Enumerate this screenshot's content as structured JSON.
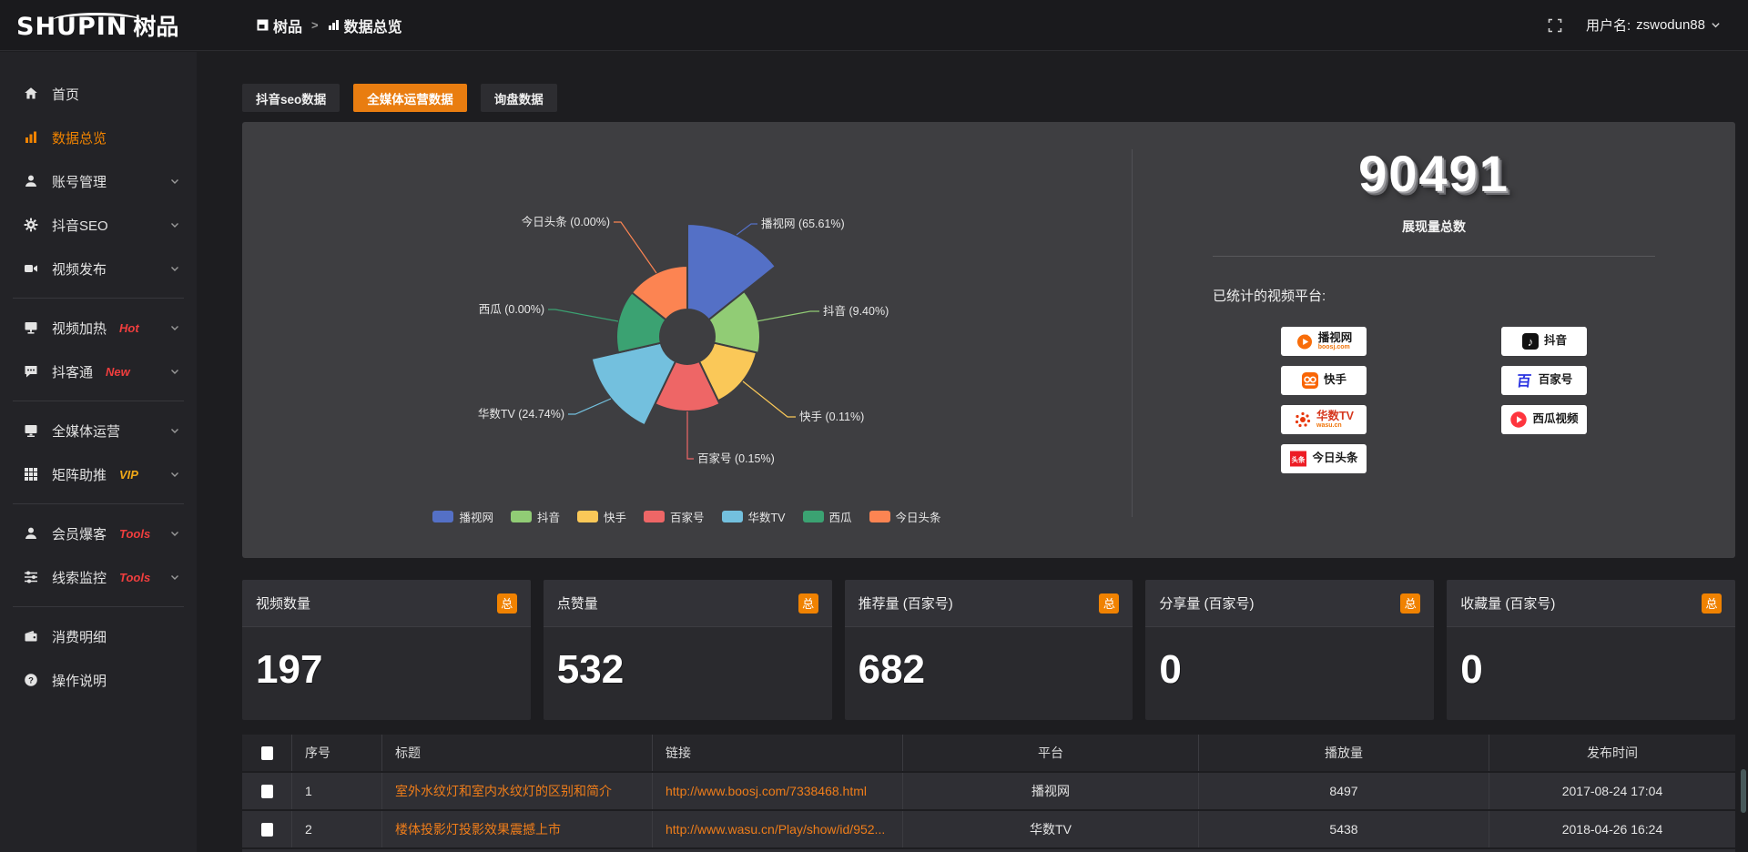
{
  "topbar": {
    "logo_main": "SHUPIN",
    "logo_cn": "树品",
    "breadcrumb": [
      {
        "label": "树品"
      },
      {
        "label": "数据总览"
      }
    ],
    "user_label": "用户名:",
    "username": "zswodun88"
  },
  "sidebar": {
    "items": [
      {
        "id": "home",
        "label": "首页",
        "icon": "home-icon",
        "active": false,
        "chevron": false,
        "badge": null,
        "badge_color": null,
        "divider_after": false
      },
      {
        "id": "data-overview",
        "label": "数据总览",
        "icon": "chart-icon",
        "active": true,
        "chevron": false,
        "badge": null,
        "badge_color": null,
        "divider_after": false
      },
      {
        "id": "account-mgmt",
        "label": "账号管理",
        "icon": "user-icon",
        "active": false,
        "chevron": true,
        "badge": null,
        "badge_color": null,
        "divider_after": false
      },
      {
        "id": "douyin-seo",
        "label": "抖音SEO",
        "icon": "gear-icon",
        "active": false,
        "chevron": true,
        "badge": null,
        "badge_color": null,
        "divider_after": false
      },
      {
        "id": "video-publish",
        "label": "视频发布",
        "icon": "video-icon",
        "active": false,
        "chevron": true,
        "badge": null,
        "badge_color": null,
        "divider_after": true
      },
      {
        "id": "video-heat",
        "label": "视频加热",
        "icon": "heat-icon",
        "active": false,
        "chevron": true,
        "badge": "Hot",
        "badge_color": "#f03e3e",
        "divider_after": false
      },
      {
        "id": "douketong",
        "label": "抖客通",
        "icon": "chat-icon",
        "active": false,
        "chevron": true,
        "badge": "New",
        "badge_color": "#f03e3e",
        "divider_after": true
      },
      {
        "id": "media-ops",
        "label": "全媒体运营",
        "icon": "monitor-icon",
        "active": false,
        "chevron": true,
        "badge": null,
        "badge_color": null,
        "divider_after": false
      },
      {
        "id": "matrix-boost",
        "label": "矩阵助推",
        "icon": "grid-icon",
        "active": false,
        "chevron": true,
        "badge": "VIP",
        "badge_color": "#f0a818",
        "divider_after": true
      },
      {
        "id": "member-baoke",
        "label": "会员爆客",
        "icon": "member-icon",
        "active": false,
        "chevron": true,
        "badge": "Tools",
        "badge_color": "#f03e3e",
        "divider_after": false
      },
      {
        "id": "leads-monitor",
        "label": "线索监控",
        "icon": "sliders-icon",
        "active": false,
        "chevron": true,
        "badge": "Tools",
        "badge_color": "#f03e3e",
        "divider_after": true
      },
      {
        "id": "spend-detail",
        "label": "消费明细",
        "icon": "wallet-icon",
        "active": false,
        "chevron": false,
        "badge": null,
        "badge_color": null,
        "divider_after": false
      },
      {
        "id": "help",
        "label": "操作说明",
        "icon": "help-icon",
        "active": false,
        "chevron": false,
        "badge": null,
        "badge_color": null,
        "divider_after": false
      }
    ]
  },
  "tabs": [
    {
      "label": "抖音seo数据",
      "active": false
    },
    {
      "label": "全媒体运营数据",
      "active": true
    },
    {
      "label": "询盘数据",
      "active": false
    }
  ],
  "chart_data": {
    "type": "pie",
    "subtype": "nightingale-rose",
    "labels": [
      "播视网",
      "抖音",
      "快手",
      "百家号",
      "华数TV",
      "西瓜",
      "今日头条"
    ],
    "values_pct": [
      65.61,
      9.4,
      0.11,
      0.15,
      24.74,
      0.0,
      0.0
    ],
    "colors": [
      "#5470c6",
      "#91cc75",
      "#fac858",
      "#ee6666",
      "#73c0de",
      "#3ba272",
      "#fc8452"
    ],
    "legend": [
      "播视网",
      "抖音",
      "快手",
      "百家号",
      "华数TV",
      "西瓜",
      "今日头条"
    ],
    "legend_position": "bottom",
    "rose_radii": [
      124,
      80,
      78,
      82,
      108,
      78,
      78
    ],
    "inner_radius": 30
  },
  "summary": {
    "value": "90491",
    "value_label": "展现量总数",
    "platforms_label": "已统计的视频平台:",
    "platform_columns": [
      [
        {
          "id": "boosj",
          "name": "播视网",
          "sub": "boosj.com"
        },
        {
          "id": "kuaishou",
          "name": "快手",
          "sub": null
        },
        {
          "id": "wasu",
          "name": "华数TV",
          "sub": "wasu.cn"
        },
        {
          "id": "toutiao",
          "name": "今日头条",
          "sub": null
        }
      ],
      [
        {
          "id": "douyin",
          "name": "抖音",
          "sub": null
        },
        {
          "id": "baijia",
          "name": "百家号",
          "sub": null
        },
        {
          "id": "xigua",
          "name": "西瓜视频",
          "sub": null
        }
      ]
    ]
  },
  "stat_cards": [
    {
      "label": "视频数量",
      "badge": "总",
      "value": "197"
    },
    {
      "label": "点赞量",
      "badge": "总",
      "value": "532"
    },
    {
      "label": "推荐量 (百家号)",
      "badge": "总",
      "value": "682"
    },
    {
      "label": "分享量 (百家号)",
      "badge": "总",
      "value": "0"
    },
    {
      "label": "收藏量 (百家号)",
      "badge": "总",
      "value": "0"
    }
  ],
  "table": {
    "headers": [
      "序号",
      "标题",
      "链接",
      "平台",
      "播放量",
      "发布时间"
    ],
    "rows": [
      {
        "index": "1",
        "title": "室外水纹灯和室内水纹灯的区别和简介",
        "link": "http://www.boosj.com/7338468.html",
        "platform": "播视网",
        "plays": "8497",
        "time": "2017-08-24 17:04"
      },
      {
        "index": "2",
        "title": "楼体投影灯投影效果震撼上市",
        "link": "http://www.wasu.cn/Play/show/id/952...",
        "platform": "华数TV",
        "plays": "5438",
        "time": "2018-04-26 16:24"
      }
    ]
  }
}
